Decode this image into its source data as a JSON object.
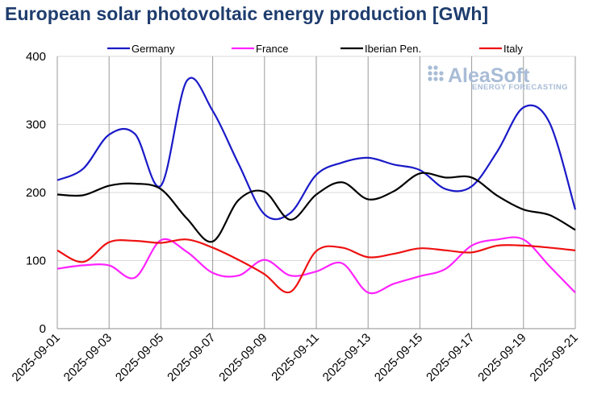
{
  "title": "European solar photovoltaic energy production [GWh]",
  "watermark": {
    "name": "AleaSoft",
    "tagline": "ENERGY FORECASTING",
    "color": "#a8bcd6"
  },
  "chart_data": {
    "type": "line",
    "title": "European solar photovoltaic energy production [GWh]",
    "xlabel": "",
    "ylabel": "",
    "ylim": [
      0,
      400
    ],
    "yticks": [
      "0",
      "100",
      "200",
      "300",
      "400"
    ],
    "grid": "vertical and horizontal gridlines",
    "legend_position": "top",
    "x": [
      "2025-09-01",
      "2025-09-02",
      "2025-09-03",
      "2025-09-04",
      "2025-09-05",
      "2025-09-06",
      "2025-09-07",
      "2025-09-08",
      "2025-09-09",
      "2025-09-10",
      "2025-09-11",
      "2025-09-12",
      "2025-09-13",
      "2025-09-14",
      "2025-09-15",
      "2025-09-16",
      "2025-09-17",
      "2025-09-18",
      "2025-09-19",
      "2025-09-20",
      "2025-09-21"
    ],
    "xtick_labels": [
      "2025-09-01",
      "2025-09-03",
      "2025-09-05",
      "2025-09-07",
      "2025-09-09",
      "2025-09-11",
      "2025-09-13",
      "2025-09-15",
      "2025-09-17",
      "2025-09-19",
      "2025-09-21"
    ],
    "series": [
      {
        "name": "Germany",
        "color": "#1a1ac8",
        "values": [
          218,
          235,
          285,
          286,
          210,
          364,
          320,
          242,
          168,
          170,
          226,
          244,
          251,
          241,
          233,
          205,
          209,
          261,
          325,
          303,
          175
        ]
      },
      {
        "name": "France",
        "color": "#ff22ff",
        "values": [
          88,
          93,
          93,
          75,
          130,
          113,
          82,
          78,
          101,
          78,
          84,
          96,
          53,
          66,
          77,
          88,
          122,
          131,
          131,
          92,
          53
        ]
      },
      {
        "name": "Iberian Pen.",
        "color": "#000000",
        "values": [
          197,
          196,
          210,
          213,
          205,
          162,
          128,
          189,
          201,
          160,
          197,
          215,
          190,
          202,
          228,
          222,
          222,
          195,
          175,
          167,
          145
        ]
      },
      {
        "name": "Italy",
        "color": "#ee1111",
        "values": [
          115,
          98,
          127,
          129,
          126,
          131,
          119,
          101,
          80,
          54,
          114,
          119,
          105,
          110,
          118,
          115,
          112,
          122,
          122,
          119,
          115
        ]
      }
    ]
  }
}
